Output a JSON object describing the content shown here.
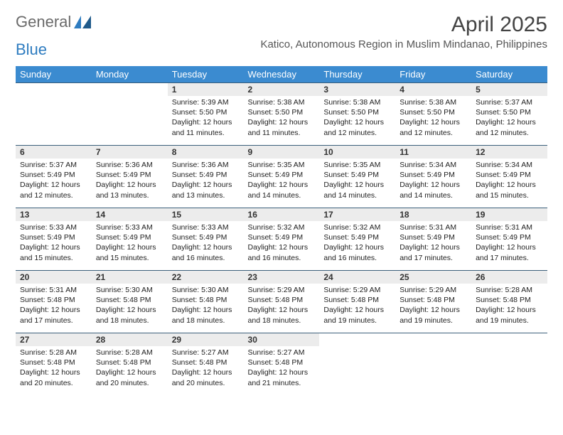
{
  "logo": {
    "text1": "General",
    "text2": "Blue"
  },
  "title": "April 2025",
  "location": "Katico, Autonomous Region in Muslim Mindanao, Philippines",
  "colors": {
    "header_bg": "#3b8bd0",
    "header_text": "#ffffff",
    "daynum_bg": "#ececec",
    "cell_border": "#3b5f7a",
    "logo_gray": "#6a6a6a",
    "logo_blue": "#2e7cc0"
  },
  "weekdays": [
    "Sunday",
    "Monday",
    "Tuesday",
    "Wednesday",
    "Thursday",
    "Friday",
    "Saturday"
  ],
  "grid": [
    [
      {
        "num": "",
        "lines": []
      },
      {
        "num": "",
        "lines": []
      },
      {
        "num": "1",
        "lines": [
          "Sunrise: 5:39 AM",
          "Sunset: 5:50 PM",
          "Daylight: 12 hours",
          "and 11 minutes."
        ]
      },
      {
        "num": "2",
        "lines": [
          "Sunrise: 5:38 AM",
          "Sunset: 5:50 PM",
          "Daylight: 12 hours",
          "and 11 minutes."
        ]
      },
      {
        "num": "3",
        "lines": [
          "Sunrise: 5:38 AM",
          "Sunset: 5:50 PM",
          "Daylight: 12 hours",
          "and 12 minutes."
        ]
      },
      {
        "num": "4",
        "lines": [
          "Sunrise: 5:38 AM",
          "Sunset: 5:50 PM",
          "Daylight: 12 hours",
          "and 12 minutes."
        ]
      },
      {
        "num": "5",
        "lines": [
          "Sunrise: 5:37 AM",
          "Sunset: 5:50 PM",
          "Daylight: 12 hours",
          "and 12 minutes."
        ]
      }
    ],
    [
      {
        "num": "6",
        "lines": [
          "Sunrise: 5:37 AM",
          "Sunset: 5:49 PM",
          "Daylight: 12 hours",
          "and 12 minutes."
        ]
      },
      {
        "num": "7",
        "lines": [
          "Sunrise: 5:36 AM",
          "Sunset: 5:49 PM",
          "Daylight: 12 hours",
          "and 13 minutes."
        ]
      },
      {
        "num": "8",
        "lines": [
          "Sunrise: 5:36 AM",
          "Sunset: 5:49 PM",
          "Daylight: 12 hours",
          "and 13 minutes."
        ]
      },
      {
        "num": "9",
        "lines": [
          "Sunrise: 5:35 AM",
          "Sunset: 5:49 PM",
          "Daylight: 12 hours",
          "and 14 minutes."
        ]
      },
      {
        "num": "10",
        "lines": [
          "Sunrise: 5:35 AM",
          "Sunset: 5:49 PM",
          "Daylight: 12 hours",
          "and 14 minutes."
        ]
      },
      {
        "num": "11",
        "lines": [
          "Sunrise: 5:34 AM",
          "Sunset: 5:49 PM",
          "Daylight: 12 hours",
          "and 14 minutes."
        ]
      },
      {
        "num": "12",
        "lines": [
          "Sunrise: 5:34 AM",
          "Sunset: 5:49 PM",
          "Daylight: 12 hours",
          "and 15 minutes."
        ]
      }
    ],
    [
      {
        "num": "13",
        "lines": [
          "Sunrise: 5:33 AM",
          "Sunset: 5:49 PM",
          "Daylight: 12 hours",
          "and 15 minutes."
        ]
      },
      {
        "num": "14",
        "lines": [
          "Sunrise: 5:33 AM",
          "Sunset: 5:49 PM",
          "Daylight: 12 hours",
          "and 15 minutes."
        ]
      },
      {
        "num": "15",
        "lines": [
          "Sunrise: 5:33 AM",
          "Sunset: 5:49 PM",
          "Daylight: 12 hours",
          "and 16 minutes."
        ]
      },
      {
        "num": "16",
        "lines": [
          "Sunrise: 5:32 AM",
          "Sunset: 5:49 PM",
          "Daylight: 12 hours",
          "and 16 minutes."
        ]
      },
      {
        "num": "17",
        "lines": [
          "Sunrise: 5:32 AM",
          "Sunset: 5:49 PM",
          "Daylight: 12 hours",
          "and 16 minutes."
        ]
      },
      {
        "num": "18",
        "lines": [
          "Sunrise: 5:31 AM",
          "Sunset: 5:49 PM",
          "Daylight: 12 hours",
          "and 17 minutes."
        ]
      },
      {
        "num": "19",
        "lines": [
          "Sunrise: 5:31 AM",
          "Sunset: 5:49 PM",
          "Daylight: 12 hours",
          "and 17 minutes."
        ]
      }
    ],
    [
      {
        "num": "20",
        "lines": [
          "Sunrise: 5:31 AM",
          "Sunset: 5:48 PM",
          "Daylight: 12 hours",
          "and 17 minutes."
        ]
      },
      {
        "num": "21",
        "lines": [
          "Sunrise: 5:30 AM",
          "Sunset: 5:48 PM",
          "Daylight: 12 hours",
          "and 18 minutes."
        ]
      },
      {
        "num": "22",
        "lines": [
          "Sunrise: 5:30 AM",
          "Sunset: 5:48 PM",
          "Daylight: 12 hours",
          "and 18 minutes."
        ]
      },
      {
        "num": "23",
        "lines": [
          "Sunrise: 5:29 AM",
          "Sunset: 5:48 PM",
          "Daylight: 12 hours",
          "and 18 minutes."
        ]
      },
      {
        "num": "24",
        "lines": [
          "Sunrise: 5:29 AM",
          "Sunset: 5:48 PM",
          "Daylight: 12 hours",
          "and 19 minutes."
        ]
      },
      {
        "num": "25",
        "lines": [
          "Sunrise: 5:29 AM",
          "Sunset: 5:48 PM",
          "Daylight: 12 hours",
          "and 19 minutes."
        ]
      },
      {
        "num": "26",
        "lines": [
          "Sunrise: 5:28 AM",
          "Sunset: 5:48 PM",
          "Daylight: 12 hours",
          "and 19 minutes."
        ]
      }
    ],
    [
      {
        "num": "27",
        "lines": [
          "Sunrise: 5:28 AM",
          "Sunset: 5:48 PM",
          "Daylight: 12 hours",
          "and 20 minutes."
        ]
      },
      {
        "num": "28",
        "lines": [
          "Sunrise: 5:28 AM",
          "Sunset: 5:48 PM",
          "Daylight: 12 hours",
          "and 20 minutes."
        ]
      },
      {
        "num": "29",
        "lines": [
          "Sunrise: 5:27 AM",
          "Sunset: 5:48 PM",
          "Daylight: 12 hours",
          "and 20 minutes."
        ]
      },
      {
        "num": "30",
        "lines": [
          "Sunrise: 5:27 AM",
          "Sunset: 5:48 PM",
          "Daylight: 12 hours",
          "and 21 minutes."
        ]
      },
      {
        "num": "",
        "lines": []
      },
      {
        "num": "",
        "lines": []
      },
      {
        "num": "",
        "lines": []
      }
    ]
  ]
}
